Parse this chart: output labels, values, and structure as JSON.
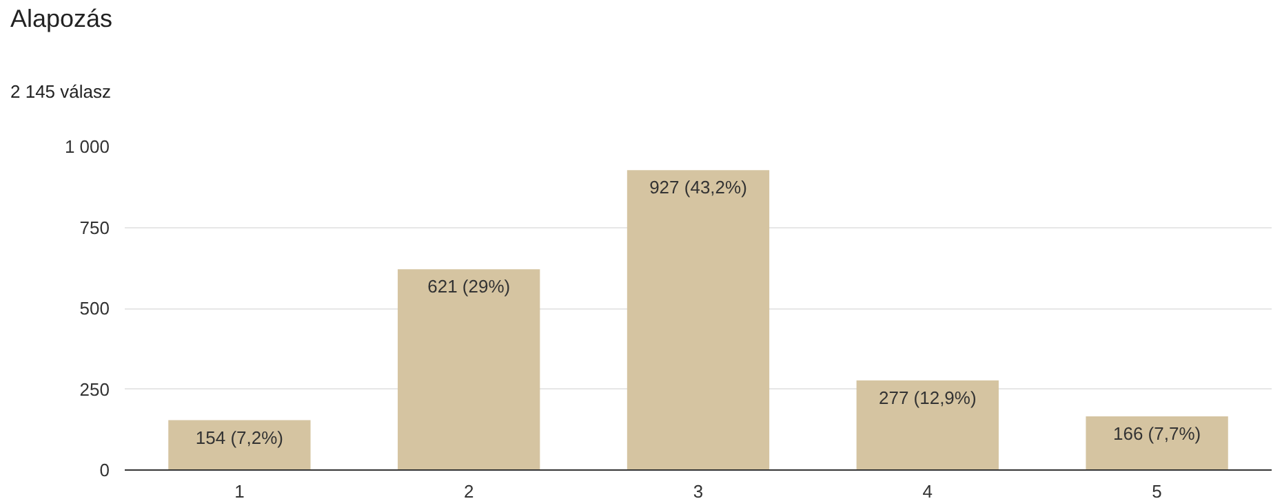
{
  "chart_data": {
    "type": "bar",
    "title": "Alapozás",
    "subtitle": "2 145 válasz",
    "categories": [
      "1",
      "2",
      "3",
      "4",
      "5"
    ],
    "values": [
      154,
      621,
      927,
      277,
      166
    ],
    "value_labels": [
      "154 (7,2%)",
      "621 (29%)",
      "927 (43,2%)",
      "277 (12,9%)",
      "166 (7,7%)"
    ],
    "color": "#d5c4a1",
    "ylim": [
      0,
      1000
    ],
    "yticks": [
      0,
      250,
      500,
      750,
      {
        "value": 1000,
        "label": "1 000"
      }
    ],
    "grid": "y"
  }
}
